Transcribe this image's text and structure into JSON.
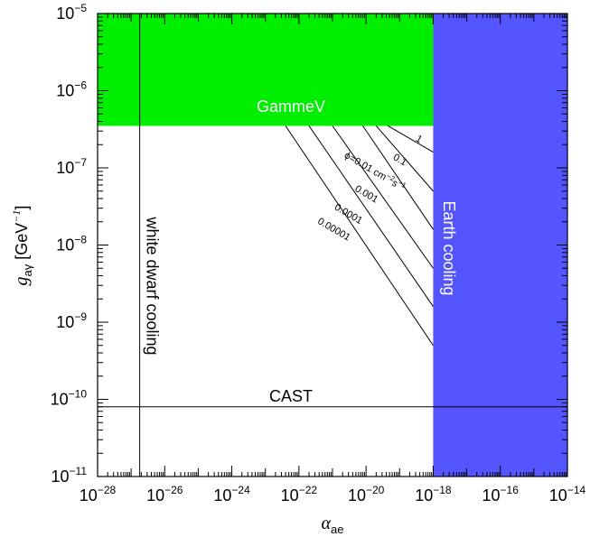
{
  "chart_data": {
    "type": "line",
    "x_axis": {
      "label_main": "α",
      "label_sub": "ae",
      "scale": "log",
      "range": [
        1e-28,
        1e-14
      ],
      "ticks": [
        {
          "value": 1e-28,
          "base": "10",
          "exp": "−28"
        },
        {
          "value": 1e-26,
          "base": "10",
          "exp": "−26"
        },
        {
          "value": 1e-24,
          "base": "10",
          "exp": "−24"
        },
        {
          "value": 1e-22,
          "base": "10",
          "exp": "−22"
        },
        {
          "value": 1e-20,
          "base": "10",
          "exp": "−20"
        },
        {
          "value": 1e-18,
          "base": "10",
          "exp": "−18"
        },
        {
          "value": 1e-16,
          "base": "10",
          "exp": "−16"
        },
        {
          "value": 1e-14,
          "base": "10",
          "exp": "−14"
        }
      ]
    },
    "y_axis": {
      "label_main": "g",
      "label_sub": "aγ",
      "label_unit": "[GeV",
      "label_unit_exp": "−1",
      "label_unit_close": "]",
      "scale": "log",
      "range": [
        1e-11,
        1e-05
      ],
      "ticks": [
        {
          "value": 1e-11,
          "base": "10",
          "exp": "−11"
        },
        {
          "value": 1e-10,
          "base": "10",
          "exp": "−10"
        },
        {
          "value": 1e-09,
          "base": "10",
          "exp": "−9"
        },
        {
          "value": 1e-08,
          "base": "10",
          "exp": "−8"
        },
        {
          "value": 1e-07,
          "base": "10",
          "exp": "−7"
        },
        {
          "value": 1e-06,
          "base": "10",
          "exp": "−6"
        },
        {
          "value": 1e-05,
          "base": "10",
          "exp": "−5"
        }
      ]
    },
    "regions": [
      {
        "label": "GammeV",
        "color": "#00ee00",
        "label_color": "#ffffff",
        "x_range": [
          1e-28,
          1e-18
        ],
        "y_range": [
          3.5e-07,
          1e-05
        ]
      },
      {
        "label": "Earth cooling",
        "color": "#5555ff",
        "label_color": "#ffffff",
        "x_range": [
          1e-18,
          1e-14
        ],
        "y_range": [
          1e-11,
          1e-05
        ]
      }
    ],
    "limit_lines": [
      {
        "label": "white dwarf cooling",
        "orientation": "vertical",
        "value": 1.8e-27
      },
      {
        "label": "CAST",
        "orientation": "horizontal",
        "value": 8e-11
      }
    ],
    "flux_lines": [
      {
        "label": "1",
        "start": [
          4.5e-20,
          3.5e-07
        ],
        "end": [
          1e-18,
          1.6e-07
        ]
      },
      {
        "label": "0.1",
        "start": [
          2e-20,
          3.5e-07
        ],
        "end": [
          1e-18,
          5e-08
        ]
      },
      {
        "label": "ϕ=0.01 cm",
        "label_exp1": "−2",
        "label_mid": "s",
        "label_exp2": "−1",
        "start": [
          8e-21,
          3.5e-07
        ],
        "end": [
          1e-18,
          1.6e-08
        ]
      },
      {
        "label": "0.001",
        "start": [
          1e-21,
          3.5e-07
        ],
        "end": [
          1e-18,
          5e-09
        ]
      },
      {
        "label": "0.0001",
        "start": [
          2e-22,
          3.5e-07
        ],
        "end": [
          1e-18,
          1.6e-09
        ]
      },
      {
        "label": "0.00001",
        "start": [
          4e-23,
          3.5e-07
        ],
        "end": [
          1e-18,
          5e-10
        ]
      }
    ]
  }
}
